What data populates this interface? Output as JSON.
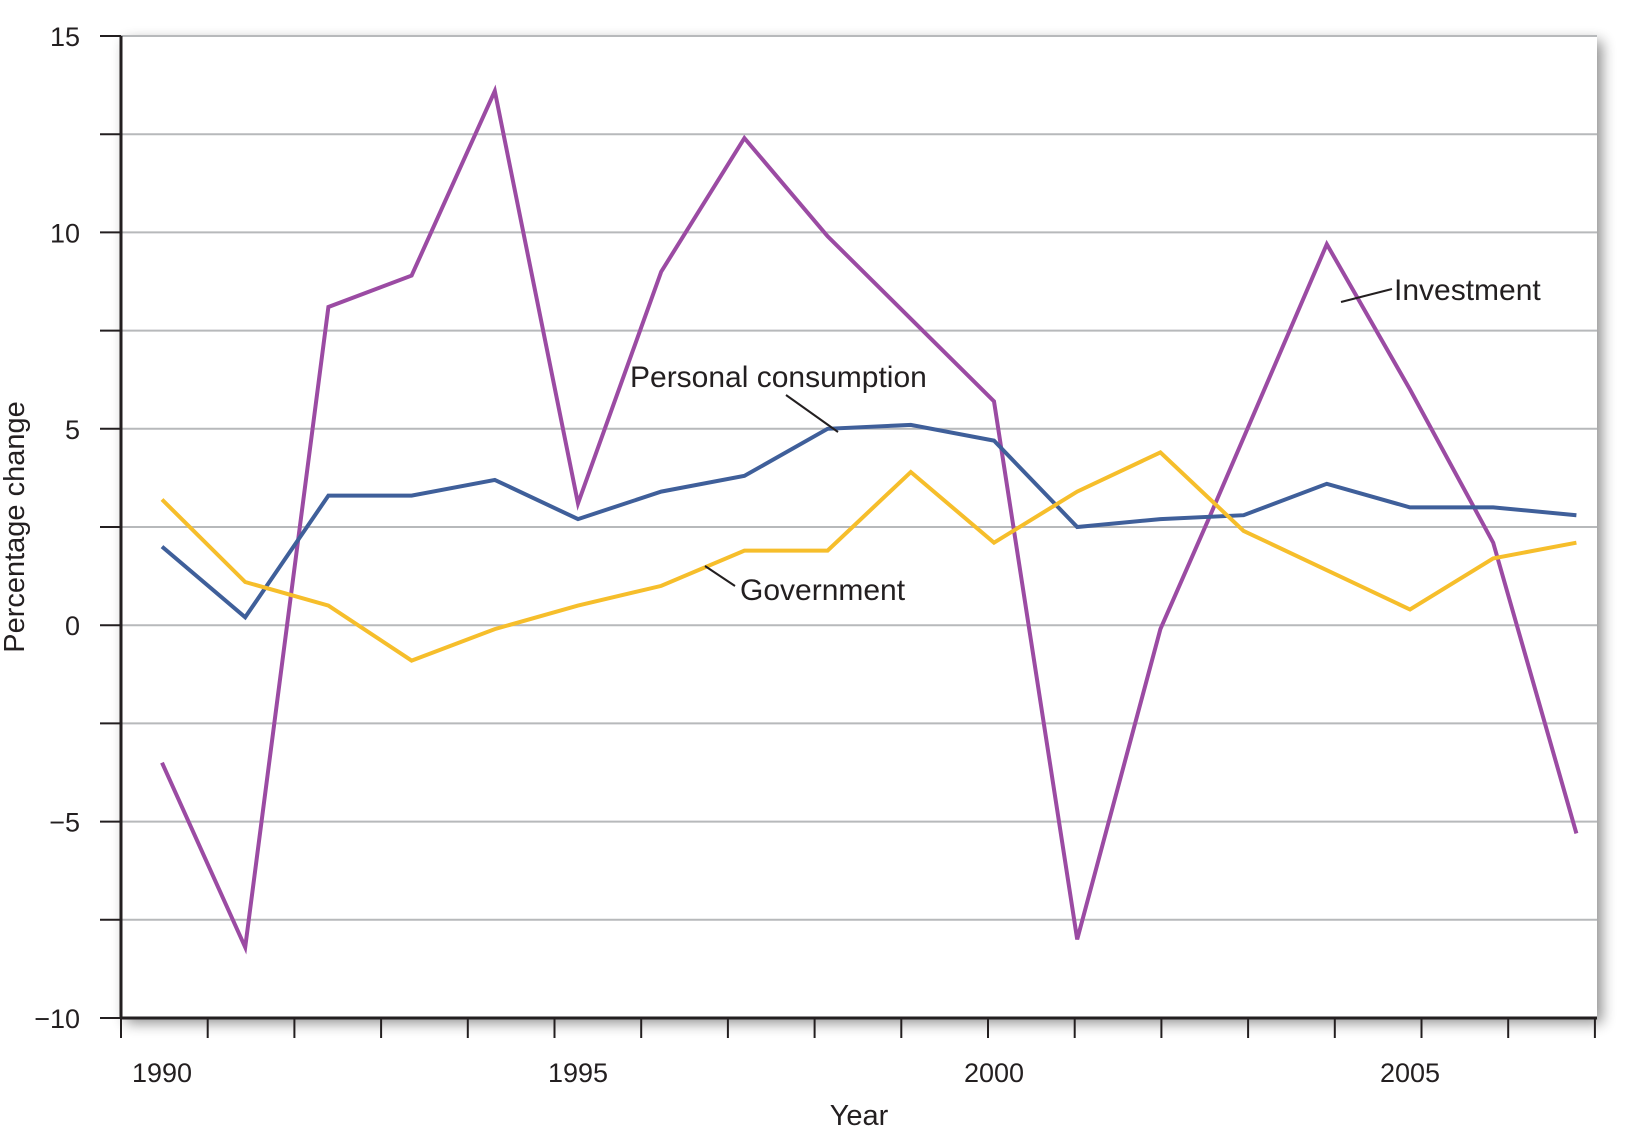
{
  "chart_data": {
    "type": "line",
    "xlabel": "Year",
    "ylabel": "Percentage change",
    "xlim": [
      1989.5,
      2007.0
    ],
    "ylim": [
      -10,
      15
    ],
    "x_ticks": [
      1990,
      1995,
      2000,
      2005
    ],
    "x_tick_labels": [
      "1990",
      "1995",
      "2000",
      "2005"
    ],
    "x_minor_ticks": [
      1990,
      1991,
      1992,
      1993,
      1994,
      1995,
      1996,
      1997,
      1998,
      1999,
      2000,
      2001,
      2002,
      2003,
      2004,
      2005,
      2006,
      2007
    ],
    "y_ticks": [
      -10,
      -7.5,
      -5,
      -2.5,
      0,
      2.5,
      5,
      7.5,
      10,
      12.5,
      15
    ],
    "y_tick_labels": {
      "-10": "−10",
      "-5": "−5",
      "0": "0",
      "5": "5",
      "10": "10",
      "15": "15"
    },
    "grid": "horizontal",
    "x": [
      1990,
      1991,
      1992,
      1993,
      1994,
      1995,
      1996,
      1997,
      1998,
      1999,
      2000,
      2001,
      2002,
      2003,
      2004,
      2005,
      2006,
      2007
    ],
    "series": [
      {
        "name": "Investment",
        "color": "#9b4ba3",
        "values": [
          -3.5,
          -8.2,
          8.1,
          8.9,
          13.6,
          3.1,
          9.0,
          12.4,
          9.9,
          7.8,
          5.7,
          -8.0,
          -0.1,
          2.8,
          9.7,
          6.0,
          2.1,
          -5.3
        ],
        "x_override": [
          1990,
          1991,
          1992,
          1993,
          1994,
          1995,
          1996,
          1997,
          1998,
          1999,
          2000,
          2001,
          2002,
          2002.6,
          2004,
          2005,
          2006,
          2007
        ]
      },
      {
        "name": "Personal consumption",
        "color": "#3f5f9a",
        "values": [
          2.0,
          0.2,
          3.3,
          3.3,
          3.7,
          2.7,
          3.4,
          3.8,
          5.0,
          5.1,
          4.7,
          2.5,
          2.7,
          2.8,
          3.6,
          3.0,
          3.0,
          2.8
        ]
      },
      {
        "name": "Government",
        "color": "#f6be2b",
        "values": [
          3.2,
          1.1,
          0.5,
          -0.9,
          -0.1,
          0.5,
          1.0,
          1.9,
          1.9,
          3.9,
          2.1,
          3.4,
          4.4,
          2.4,
          1.4,
          0.4,
          1.7,
          2.1
        ]
      }
    ]
  },
  "labels": {
    "investment": "Investment",
    "personal_consumption": "Personal consumption",
    "government": "Government"
  }
}
